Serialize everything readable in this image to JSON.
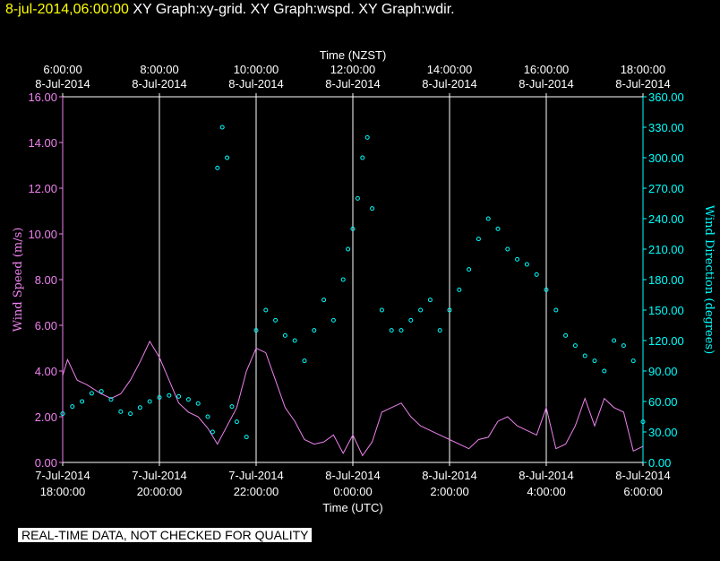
{
  "header": {
    "timestamp": "8-jul-2014,06:00:00",
    "titles": "XY Graph:xy-grid.  XY Graph:wspd.  XY Graph:wdir."
  },
  "notice": "REAL-TIME DATA, NOT CHECKED FOR QUALITY",
  "colors": {
    "background": "#000000",
    "grid": "#ffffff",
    "wind_speed": "#ee82ee",
    "wind_direction": "#00ffff",
    "timestamp": "#ffff00"
  },
  "chart_data": {
    "type": "line",
    "top_axis": {
      "label": "Time (NZST)",
      "ticks": [
        {
          "time": "6:00:00",
          "date": "8-Jul-2014"
        },
        {
          "time": "8:00:00",
          "date": "8-Jul-2014"
        },
        {
          "time": "10:00:00",
          "date": "8-Jul-2014"
        },
        {
          "time": "12:00:00",
          "date": "8-Jul-2014"
        },
        {
          "time": "14:00:00",
          "date": "8-Jul-2014"
        },
        {
          "time": "16:00:00",
          "date": "8-Jul-2014"
        },
        {
          "time": "18:00:00",
          "date": "8-Jul-2014"
        }
      ]
    },
    "bottom_axis": {
      "label": "Time (UTC)",
      "ticks": [
        {
          "date": "7-Jul-2014",
          "time": "18:00:00"
        },
        {
          "date": "7-Jul-2014",
          "time": "20:00:00"
        },
        {
          "date": "7-Jul-2014",
          "time": "22:00:00"
        },
        {
          "date": "8-Jul-2014",
          "time": "0:00:00"
        },
        {
          "date": "8-Jul-2014",
          "time": "2:00:00"
        },
        {
          "date": "8-Jul-2014",
          "time": "4:00:00"
        },
        {
          "date": "8-Jul-2014",
          "time": "6:00:00"
        }
      ]
    },
    "x_hours_utc_range": [
      18,
      30
    ],
    "left_axis": {
      "label": "Wind Speed (m/s)",
      "range": [
        0,
        16
      ],
      "ticks": [
        "0.00",
        "2.00",
        "4.00",
        "6.00",
        "8.00",
        "10.00",
        "12.00",
        "14.00",
        "16.00"
      ]
    },
    "right_axis": {
      "label": "Wind Direction (degrees)",
      "range": [
        0,
        360
      ],
      "ticks": [
        "0.00",
        "30.00",
        "60.00",
        "90.00",
        "120.00",
        "150.00",
        "180.00",
        "210.00",
        "240.00",
        "270.00",
        "300.00",
        "330.00",
        "360.00"
      ]
    },
    "grid": "vertical lines at each 2-hour tick",
    "series": [
      {
        "name": "wspd",
        "style": "line",
        "x": [
          18.0,
          18.1,
          18.3,
          18.5,
          18.8,
          19.0,
          19.2,
          19.4,
          19.6,
          19.8,
          20.0,
          20.2,
          20.4,
          20.6,
          20.8,
          21.0,
          21.2,
          21.4,
          21.6,
          21.8,
          22.0,
          22.2,
          22.4,
          22.6,
          22.8,
          23.0,
          23.2,
          23.4,
          23.6,
          23.8,
          24.0,
          24.2,
          24.4,
          24.6,
          24.8,
          25.0,
          25.2,
          25.4,
          25.6,
          25.8,
          26.0,
          26.2,
          26.4,
          26.6,
          26.8,
          27.0,
          27.2,
          27.4,
          27.6,
          27.8,
          28.0,
          28.2,
          28.4,
          28.6,
          28.8,
          29.0,
          29.2,
          29.4,
          29.6,
          29.8,
          30.0
        ],
        "y": [
          3.8,
          4.5,
          3.6,
          3.4,
          3.0,
          2.8,
          3.0,
          3.6,
          4.4,
          5.3,
          4.6,
          3.6,
          2.6,
          2.2,
          2.0,
          1.5,
          0.8,
          1.6,
          2.4,
          4.0,
          5.0,
          4.8,
          3.6,
          2.4,
          1.8,
          1.0,
          0.8,
          0.9,
          1.2,
          0.4,
          1.2,
          0.3,
          0.9,
          2.2,
          2.4,
          2.6,
          2.0,
          1.6,
          1.4,
          1.2,
          1.0,
          0.8,
          0.6,
          1.0,
          1.1,
          1.8,
          2.0,
          1.6,
          1.4,
          1.2,
          2.4,
          0.6,
          0.8,
          1.6,
          2.8,
          1.6,
          2.8,
          2.4,
          2.2,
          0.5,
          0.7
        ]
      },
      {
        "name": "wdir",
        "style": "circles",
        "x": [
          18.0,
          18.2,
          18.4,
          18.6,
          18.8,
          19.0,
          19.2,
          19.4,
          19.6,
          19.8,
          20.0,
          20.2,
          20.4,
          20.6,
          20.8,
          21.0,
          21.1,
          21.2,
          21.3,
          21.4,
          21.5,
          21.6,
          21.8,
          22.0,
          22.2,
          22.4,
          22.6,
          22.8,
          23.0,
          23.2,
          23.4,
          23.6,
          23.8,
          23.9,
          24.0,
          24.1,
          24.2,
          24.3,
          24.4,
          24.6,
          24.8,
          25.0,
          25.2,
          25.4,
          25.6,
          25.8,
          26.0,
          26.2,
          26.4,
          26.6,
          26.8,
          27.0,
          27.2,
          27.4,
          27.6,
          27.8,
          28.0,
          28.2,
          28.4,
          28.6,
          28.8,
          29.0,
          29.2,
          29.4,
          29.6,
          29.8,
          30.0
        ],
        "y": [
          48,
          55,
          60,
          68,
          70,
          62,
          50,
          48,
          54,
          60,
          64,
          66,
          65,
          62,
          58,
          45,
          30,
          290,
          330,
          300,
          55,
          40,
          25,
          130,
          150,
          140,
          125,
          120,
          100,
          130,
          160,
          140,
          180,
          210,
          230,
          260,
          300,
          320,
          250,
          150,
          130,
          130,
          140,
          150,
          160,
          130,
          150,
          170,
          190,
          220,
          240,
          230,
          210,
          200,
          195,
          185,
          170,
          150,
          125,
          115,
          105,
          100,
          90,
          120,
          115,
          100,
          40
        ]
      }
    ]
  }
}
